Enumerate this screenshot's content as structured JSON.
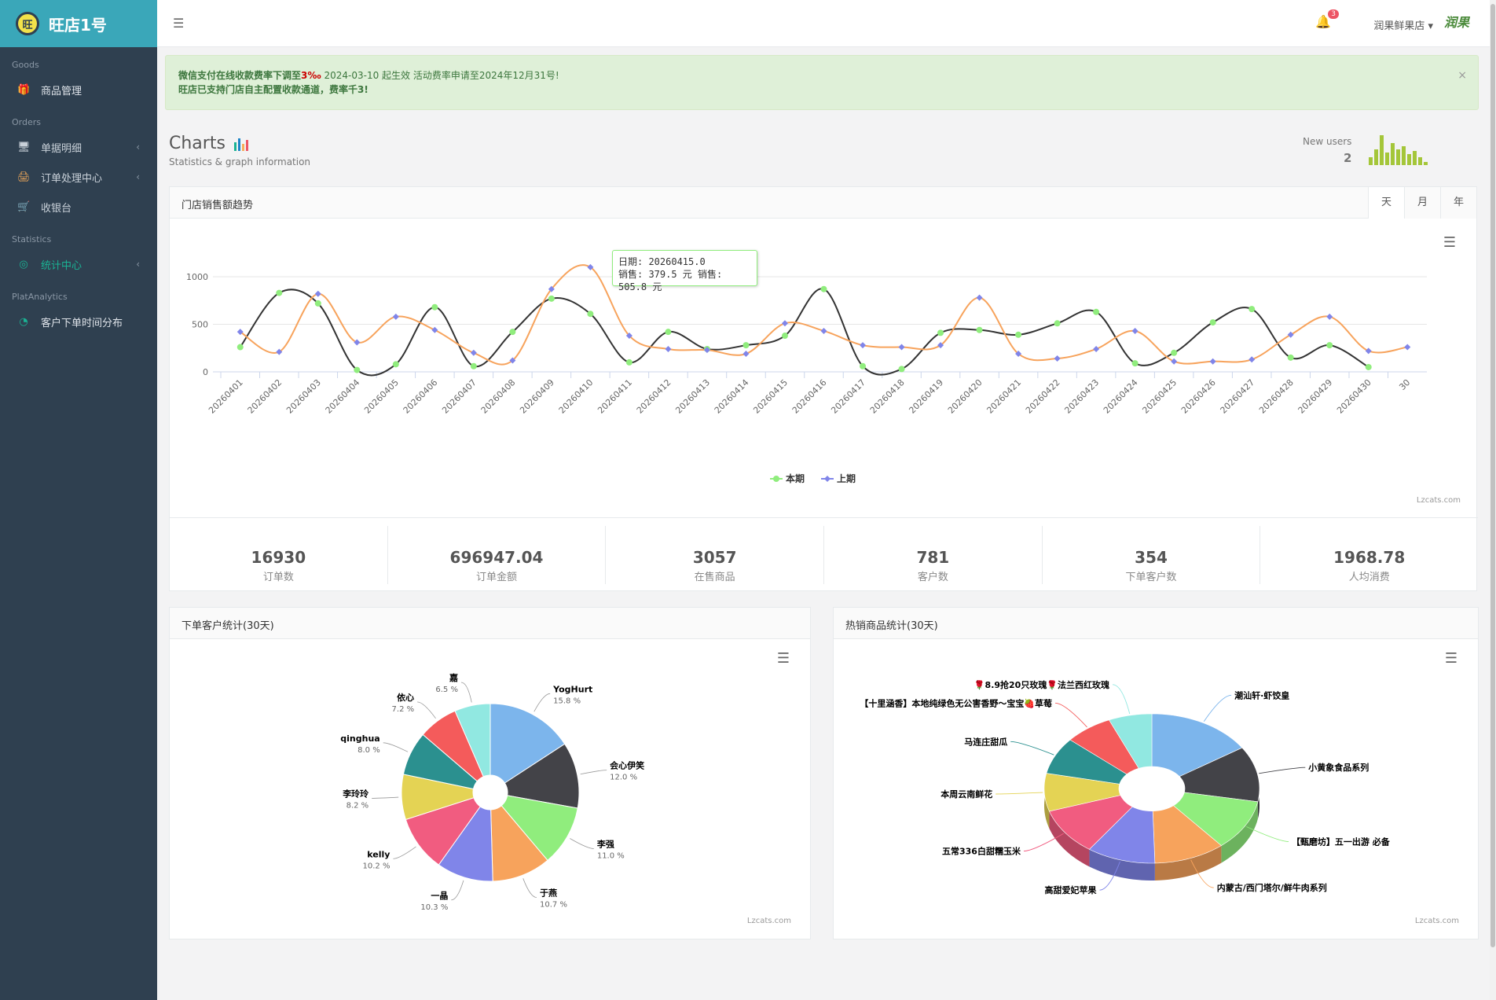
{
  "app": {
    "logo_text": "旺店1号",
    "logo_badge": "旺"
  },
  "sidebar": {
    "sections": [
      {
        "title": "Goods",
        "items": [
          {
            "label": "商品管理",
            "icon": "gift-icon"
          }
        ]
      },
      {
        "title": "Orders",
        "items": [
          {
            "label": "单据明细",
            "icon": "monitor-icon"
          },
          {
            "label": "订单处理中心",
            "icon": "printer-icon"
          },
          {
            "label": "收银台",
            "icon": "cart-icon"
          }
        ]
      },
      {
        "title": "Statistics",
        "items": [
          {
            "label": "统计中心",
            "icon": "globe-icon"
          }
        ]
      },
      {
        "title": "PlatAnalytics",
        "items": [
          {
            "label": "客户下单时间分布",
            "icon": "dashboard-icon"
          }
        ]
      }
    ]
  },
  "topbar": {
    "notification_count": "3",
    "store_name": "润果鲜果店",
    "brand_logo": "润果"
  },
  "alert": {
    "line1_a": "微信支付在线收款费率下调至",
    "line1_rate": "3‰",
    "line1_b": " 2024-03-10 起生效 活动费率申请至2024年12月31号!",
    "line2": "旺店已支持门店自主配置收款通道，费率千3!",
    "close": "×"
  },
  "page": {
    "title": "Charts",
    "subtitle": "Statistics & graph information",
    "new_users_label": "New users",
    "new_users_value": "2"
  },
  "sales_panel": {
    "title": "门店销售额趋势",
    "tabs": [
      "天",
      "月",
      "年"
    ],
    "credit": "Lzcats.com",
    "tooltip_line1": "日期: 20260415.0",
    "tooltip_line2": "销售: 379.5 元 销售: 505.8 元"
  },
  "stats": [
    {
      "value": "16930",
      "label": "订单数"
    },
    {
      "value": "696947.04",
      "label": "订单金额"
    },
    {
      "value": "3057",
      "label": "在售商品"
    },
    {
      "value": "781",
      "label": "客户数"
    },
    {
      "value": "354",
      "label": "下单客户数"
    },
    {
      "value": "1968.78",
      "label": "人均消费"
    }
  ],
  "customers_panel": {
    "title": "下单客户统计(30天)",
    "credit": "Lzcats.com"
  },
  "products_panel": {
    "title": "热销商品统计(30天)",
    "credit": "Lzcats.com"
  },
  "colors": {
    "current": "#90ed7d",
    "previous": "#8085e9",
    "line_current": "#333333",
    "line_previous": "#f7a35c",
    "accent": "#1ab394"
  },
  "chart_data": [
    {
      "type": "line",
      "categories": [
        "20260401",
        "20260402",
        "20260403",
        "20260404",
        "20260405",
        "20260406",
        "20260407",
        "20260408",
        "20260409",
        "20260410",
        "20260411",
        "20260412",
        "20260413",
        "20260414",
        "20260415",
        "20260416",
        "20260417",
        "20260418",
        "20260419",
        "20260420",
        "20260421",
        "20260422",
        "20260423",
        "20260424",
        "20260425",
        "20260426",
        "20260427",
        "20260428",
        "20260429",
        "20260430",
        "30"
      ],
      "yticks": [
        0,
        500,
        1000
      ],
      "ylim": [
        0,
        1300
      ],
      "series": [
        {
          "name": "本期",
          "values": [
            260,
            830,
            720,
            20,
            80,
            680,
            60,
            420,
            770,
            610,
            100,
            420,
            240,
            280,
            380,
            870,
            60,
            30,
            410,
            440,
            390,
            510,
            630,
            90,
            200,
            520,
            660,
            150,
            280,
            50,
            null
          ]
        },
        {
          "name": "上期",
          "values": [
            420,
            210,
            820,
            310,
            580,
            440,
            200,
            120,
            870,
            1100,
            380,
            240,
            230,
            190,
            510,
            430,
            280,
            260,
            280,
            780,
            190,
            140,
            240,
            430,
            110,
            110,
            130,
            390,
            580,
            220,
            260
          ]
        }
      ],
      "legend": "bottom"
    },
    {
      "type": "pie",
      "title": "下单客户统计(30天)",
      "labels": [
        "YogHurt",
        "会心伊笑",
        "李强",
        "于燕",
        "一晶",
        "kelly",
        "李玲玲",
        "qinghua",
        "依心",
        "嘉"
      ],
      "values": [
        15.8,
        12.0,
        11.0,
        10.7,
        10.3,
        10.2,
        8.2,
        8.0,
        7.2,
        6.5
      ]
    },
    {
      "type": "pie",
      "title": "热销商品统计(30天)",
      "labels": [
        "潮汕轩·虾饺皇",
        "小黄象食品系列",
        "【甄磨坊】五一出游 必备",
        "内蒙古/西门塔尔/鲜牛肉系列",
        "高甜爱妃苹果",
        "五常336白甜糯玉米",
        "本周云南鲜花",
        "马连庄甜瓜",
        "【十里涵香】本地纯绿色无公害香野～宝宝🍓草莓",
        "🌹8.9抢20只玫瑰🌹法兰西红玫瑰"
      ],
      "values": [
        15.8,
        12.0,
        11.0,
        10.7,
        10.3,
        10.2,
        8.2,
        8.0,
        7.2,
        6.5
      ]
    }
  ]
}
